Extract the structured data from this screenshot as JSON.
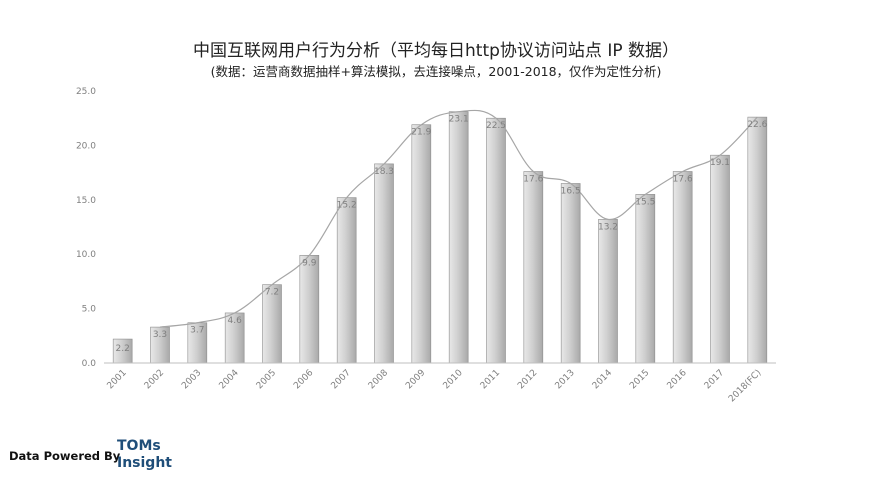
{
  "chart_data": {
    "type": "bar",
    "title": "中国互联网用户行为分析（平均每日http协议访问站点 IP 数据）",
    "subtitle": "(数据：运营商数据抽样+算法模拟，去连接噪点，2001-2018，仅作为定性分析)",
    "categories": [
      "2001",
      "2002",
      "2003",
      "2004",
      "2005",
      "2006",
      "2007",
      "2008",
      "2009",
      "2010",
      "2011",
      "2012",
      "2013",
      "2014",
      "2015",
      "2016",
      "2017",
      "2018(FC)"
    ],
    "values": [
      2.2,
      3.3,
      3.7,
      4.6,
      7.2,
      9.9,
      15.2,
      18.3,
      21.9,
      23.1,
      22.5,
      17.6,
      16.5,
      13.2,
      15.5,
      17.6,
      19.1,
      22.6
    ],
    "data_labels": [
      "2.2",
      "3.3",
      "3.7",
      "4.6",
      "7.2",
      "9.9",
      "15.2",
      "18.3",
      "21.9",
      "23.1",
      "22.5",
      "17.6",
      "16.5",
      "13.2",
      "15.5",
      "17.6",
      "19.1",
      "22.6"
    ],
    "yticks": [
      "0.0",
      "5.0",
      "10.0",
      "15.0",
      "20.0",
      "25.0"
    ],
    "ylim": [
      0,
      25
    ],
    "trendline": true,
    "grid": false,
    "colors": {
      "bar_light": "#e6e6e6",
      "bar_dark": "#a9a9a9",
      "bar_edge": "#8c8c8c",
      "trend": "#a6a6a6",
      "axis": "#bfbfbf"
    }
  },
  "footer": {
    "label": "Data Powered By",
    "brand_line1": "TOMs",
    "brand_line2": "Insight"
  }
}
